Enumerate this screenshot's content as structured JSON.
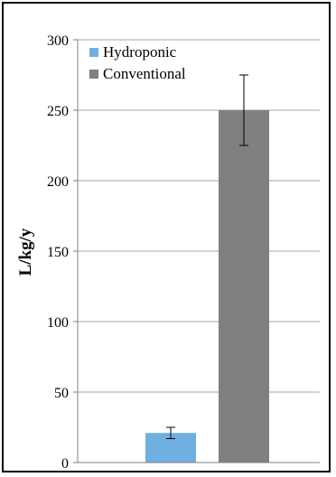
{
  "chart_data": {
    "type": "bar",
    "title": "",
    "xlabel": "",
    "ylabel": "L/kg/y",
    "ylim": [
      0,
      300
    ],
    "yticks": [
      0,
      50,
      100,
      150,
      200,
      250,
      300
    ],
    "grid": true,
    "legend_position": "top-left",
    "series": [
      {
        "name": "Hydroponic",
        "value": 21,
        "error": 4,
        "color": "#70b0e0"
      },
      {
        "name": "Conventional",
        "value": 250,
        "error": 25,
        "color": "#808080"
      }
    ]
  }
}
